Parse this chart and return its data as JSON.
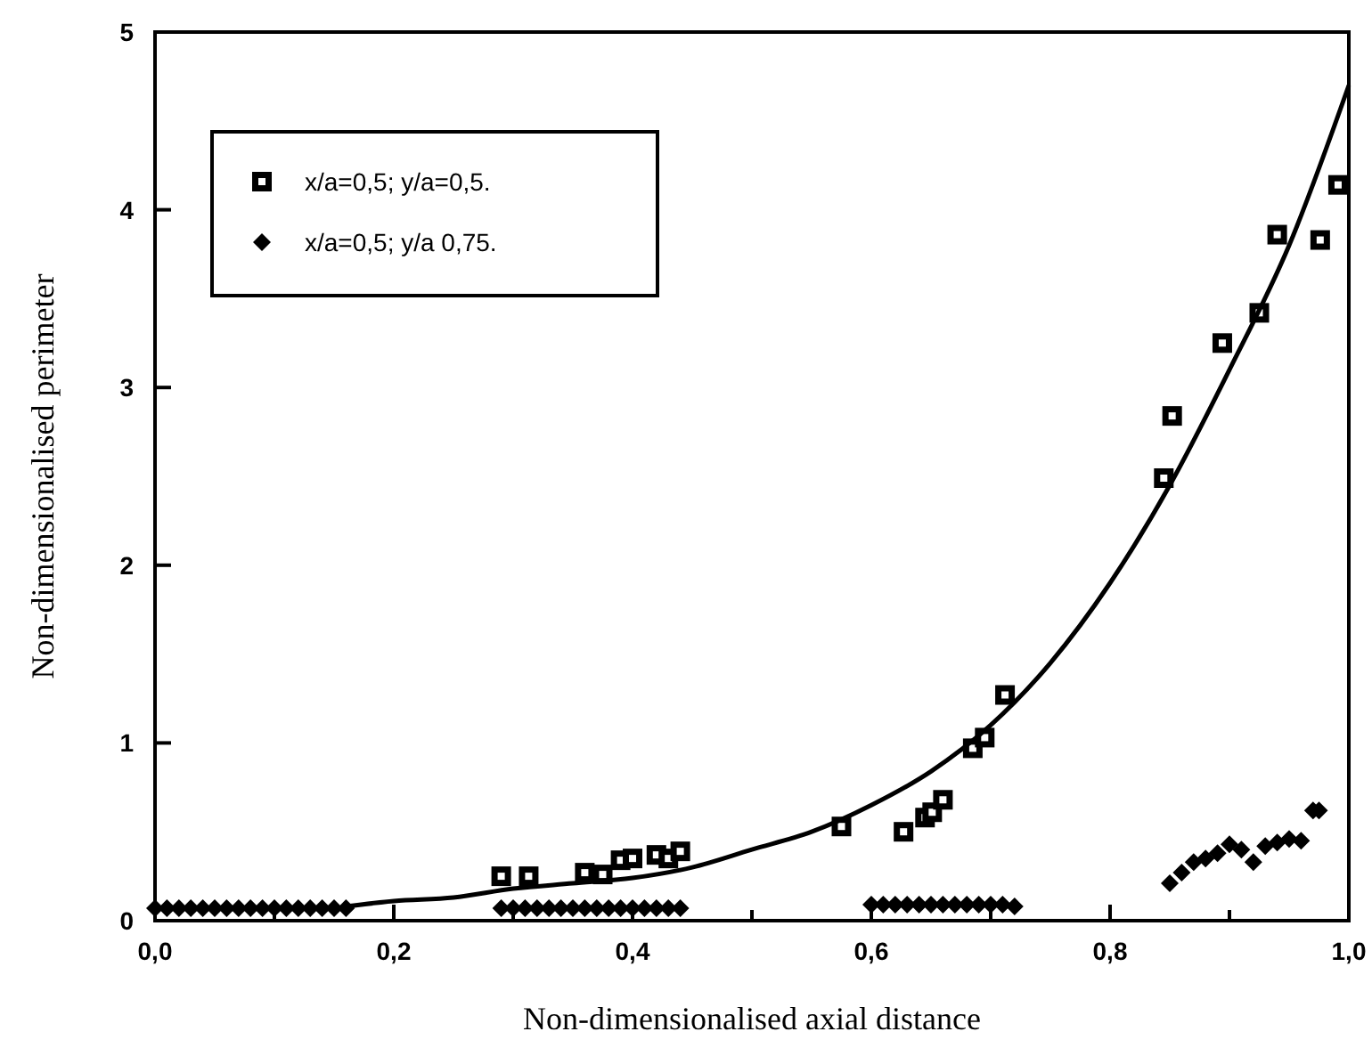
{
  "chart_data": {
    "type": "scatter",
    "xlabel": "Non-dimensionalised axial distance",
    "ylabel": "Non-dimensionalised perimeter",
    "xlim": [
      0,
      1
    ],
    "ylim": [
      0,
      5
    ],
    "xticks": [
      {
        "value": 0,
        "label": "0,0"
      },
      {
        "value": 0.1,
        "label": null
      },
      {
        "value": 0.2,
        "label": "0,2"
      },
      {
        "value": 0.3,
        "label": null
      },
      {
        "value": 0.4,
        "label": "0,4"
      },
      {
        "value": 0.5,
        "label": null
      },
      {
        "value": 0.6,
        "label": "0,6"
      },
      {
        "value": 0.7,
        "label": null
      },
      {
        "value": 0.8,
        "label": "0,8"
      },
      {
        "value": 0.9,
        "label": null
      },
      {
        "value": 1,
        "label": "1,0"
      }
    ],
    "yticks": [
      0,
      1,
      2,
      3,
      4,
      5
    ],
    "grid": false,
    "legend": "top left",
    "series": [
      {
        "name": "x/a=0,5; y/a=0,5.",
        "color": "#000000",
        "marker": "square",
        "x": [
          0.29,
          0.313,
          0.36,
          0.375,
          0.39,
          0.4,
          0.42,
          0.43,
          0.44,
          0.575,
          0.627,
          0.645,
          0.651,
          0.66,
          0.685,
          0.695,
          0.712,
          0.845,
          0.852,
          0.894,
          0.925,
          0.94,
          0.976,
          0.991
        ],
        "values": [
          0.25,
          0.25,
          0.27,
          0.26,
          0.34,
          0.35,
          0.37,
          0.35,
          0.39,
          0.53,
          0.5,
          0.58,
          0.61,
          0.68,
          0.97,
          1.03,
          1.27,
          2.49,
          2.84,
          3.25,
          3.42,
          3.86,
          3.83,
          4.14
        ]
      },
      {
        "name": "x/a=0,5; y/a 0,75.",
        "color": "#000000",
        "marker": "diamond",
        "x": [
          0,
          0.01,
          0.02,
          0.03,
          0.04,
          0.05,
          0.06,
          0.07,
          0.08,
          0.09,
          0.1,
          0.11,
          0.12,
          0.13,
          0.14,
          0.15,
          0.16,
          0.29,
          0.3,
          0.31,
          0.32,
          0.33,
          0.34,
          0.35,
          0.36,
          0.37,
          0.38,
          0.39,
          0.4,
          0.41,
          0.42,
          0.43,
          0.44,
          0.6,
          0.61,
          0.62,
          0.63,
          0.64,
          0.65,
          0.66,
          0.67,
          0.68,
          0.69,
          0.7,
          0.71,
          0.72,
          0.85,
          0.86,
          0.87,
          0.88,
          0.89,
          0.9,
          0.91,
          0.92,
          0.93,
          0.94,
          0.95,
          0.96,
          0.97,
          0.975
        ],
        "values": [
          0.07,
          0.07,
          0.07,
          0.07,
          0.07,
          0.07,
          0.07,
          0.07,
          0.07,
          0.07,
          0.07,
          0.07,
          0.07,
          0.07,
          0.07,
          0.07,
          0.07,
          0.07,
          0.07,
          0.07,
          0.07,
          0.07,
          0.07,
          0.07,
          0.07,
          0.07,
          0.07,
          0.07,
          0.07,
          0.07,
          0.07,
          0.07,
          0.07,
          0.09,
          0.09,
          0.09,
          0.09,
          0.09,
          0.09,
          0.09,
          0.09,
          0.09,
          0.09,
          0.09,
          0.09,
          0.08,
          0.21,
          0.27,
          0.33,
          0.35,
          0.38,
          0.43,
          0.4,
          0.33,
          0.42,
          0.44,
          0.46,
          0.45,
          0.62,
          0.62
        ]
      },
      {
        "type": "line",
        "color": "#000000",
        "marker": "none",
        "x": [
          0.16,
          0.2,
          0.25,
          0.3,
          0.35,
          0.4,
          0.45,
          0.5,
          0.55,
          0.6,
          0.65,
          0.7,
          0.75,
          0.8,
          0.85,
          0.9,
          0.95,
          1.0
        ],
        "values": [
          0.08,
          0.11,
          0.13,
          0.18,
          0.21,
          0.24,
          0.3,
          0.4,
          0.5,
          0.65,
          0.84,
          1.1,
          1.45,
          1.9,
          2.45,
          3.1,
          3.8,
          4.7
        ]
      }
    ]
  }
}
